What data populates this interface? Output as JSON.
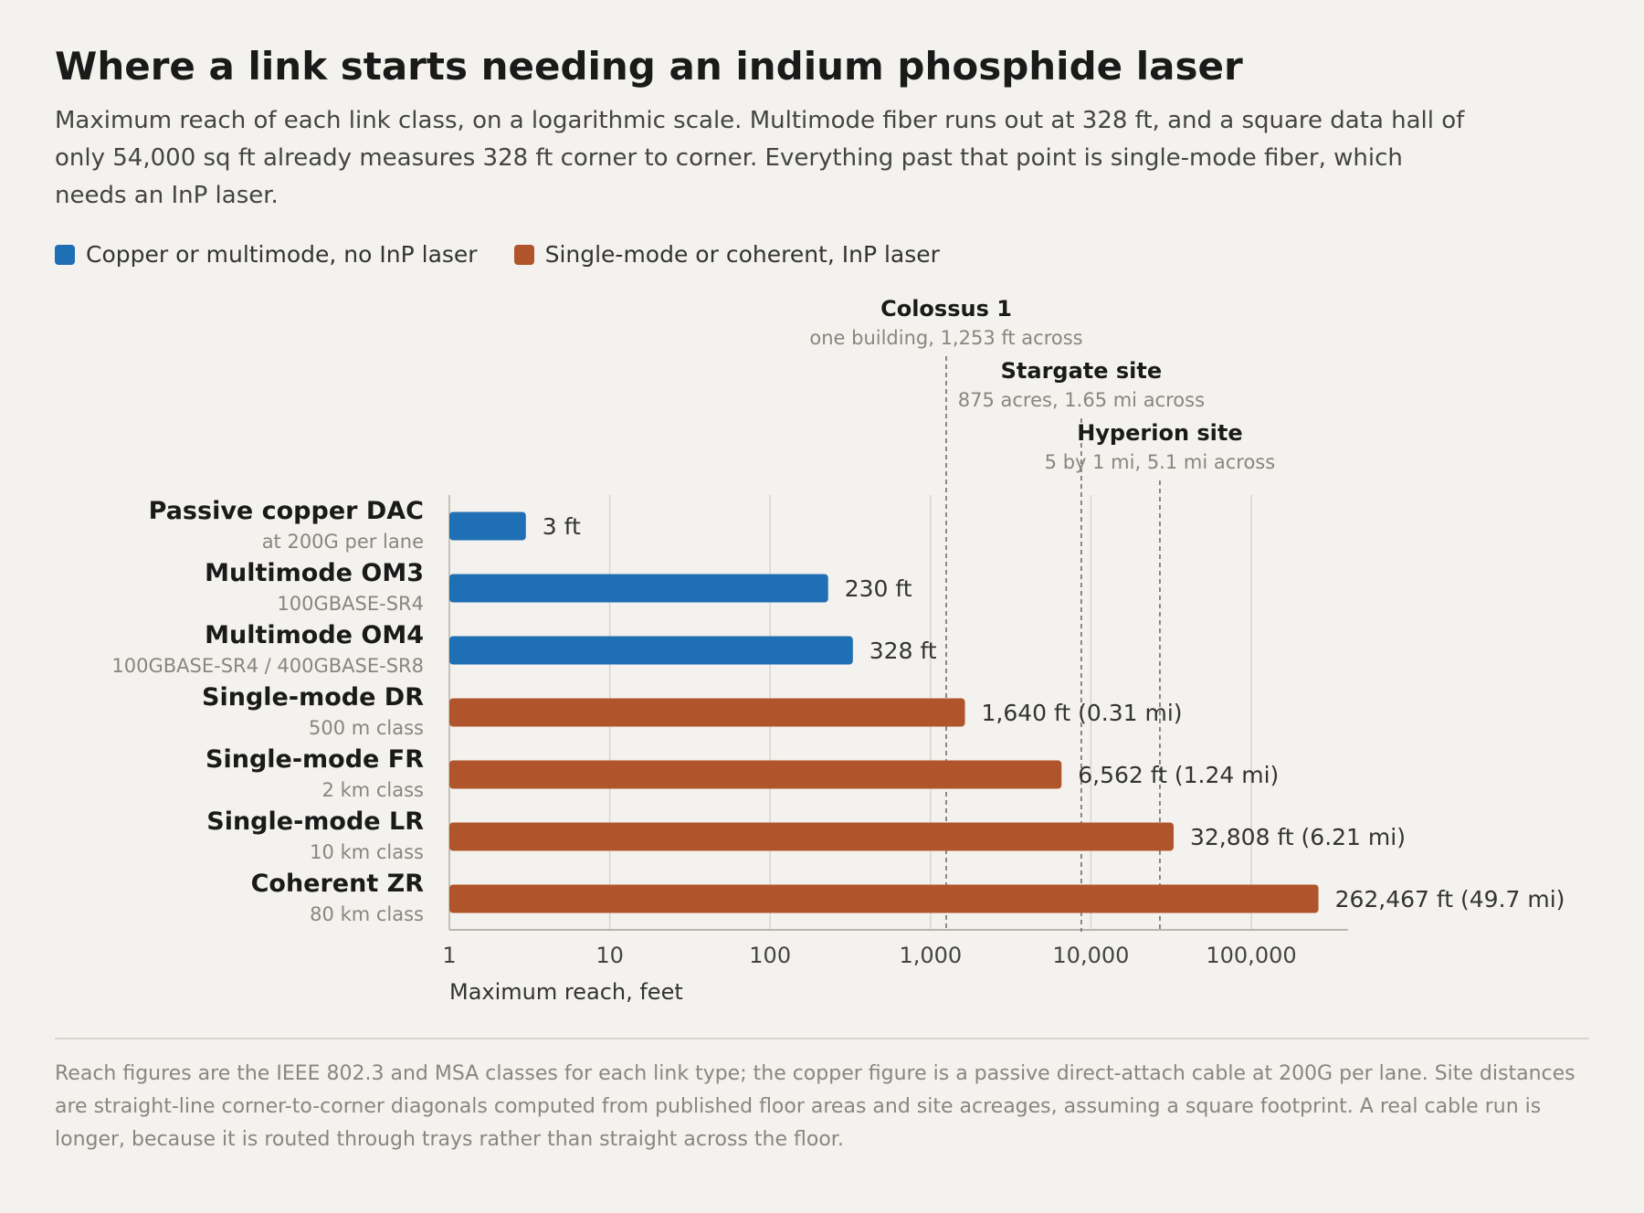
{
  "colors": {
    "no_inp": "#1f6fb4",
    "inp": "#b0552b",
    "background": "#f4f2ee",
    "grid": "#d8d5cf"
  },
  "title": "Where a link starts needing an indium phosphide laser",
  "subtitle": "Maximum reach of each link class, on a logarithmic scale. Multimode fiber runs out at 328 ft, and a square data hall of only 54,000 sq ft already measures 328 ft corner to corner. Everything past that point is single-mode fiber, which needs an InP laser.",
  "legend": [
    {
      "label": "Copper or multimode, no InP laser",
      "color": "#1f6fb4"
    },
    {
      "label": "Single-mode or coherent, InP laser",
      "color": "#b0552b"
    }
  ],
  "footnote": "Reach figures are the IEEE 802.3 and MSA classes for each link type; the copper figure is a passive direct-attach cable at 200G per lane. Site distances are straight-line corner-to-corner diagonals computed from published floor areas and site acreages, assuming a square footprint. A real cable run is longer, because it is routed through trays rather than straight across the floor.",
  "chart_data": {
    "type": "bar",
    "orientation": "horizontal",
    "x_scale": "log",
    "xlim": [
      1,
      400000
    ],
    "xlabel": "Maximum reach, feet",
    "x_ticks": [
      {
        "value": 1,
        "label": "1"
      },
      {
        "value": 10,
        "label": "10"
      },
      {
        "value": 100,
        "label": "100"
      },
      {
        "value": 1000,
        "label": "1,000"
      },
      {
        "value": 10000,
        "label": "10,000"
      },
      {
        "value": 100000,
        "label": "100,000"
      }
    ],
    "grid": true,
    "bars": [
      {
        "name": "Passive copper DAC",
        "sub": "at 200G per lane",
        "value": 3,
        "label": "3 ft",
        "group": "no_inp"
      },
      {
        "name": "Multimode OM3",
        "sub": "100GBASE-SR4",
        "value": 230,
        "label": "230 ft",
        "group": "no_inp"
      },
      {
        "name": "Multimode OM4",
        "sub": "100GBASE-SR4 / 400GBASE-SR8",
        "value": 328,
        "label": "328 ft",
        "group": "no_inp"
      },
      {
        "name": "Single-mode DR",
        "sub": "500 m class",
        "value": 1640,
        "label": "1,640 ft (0.31 mi)",
        "group": "inp"
      },
      {
        "name": "Single-mode FR",
        "sub": "2 km class",
        "value": 6562,
        "label": "6,562 ft (1.24 mi)",
        "group": "inp"
      },
      {
        "name": "Single-mode LR",
        "sub": "10 km class",
        "value": 32808,
        "label": "32,808 ft (6.21 mi)",
        "group": "inp"
      },
      {
        "name": "Coherent ZR",
        "sub": "80 km class",
        "value": 262467,
        "label": "262,467 ft (49.7 mi)",
        "group": "inp"
      }
    ],
    "annotations": [
      {
        "title": "Colossus 1",
        "sub": "one building, 1,253 ft across",
        "value": 1253
      },
      {
        "title": "Stargate site",
        "sub": "875 acres, 1.65 mi across",
        "value": 8712
      },
      {
        "title": "Hyperion site",
        "sub": "5 by 1 mi, 5.1 mi across",
        "value": 26928
      }
    ]
  }
}
